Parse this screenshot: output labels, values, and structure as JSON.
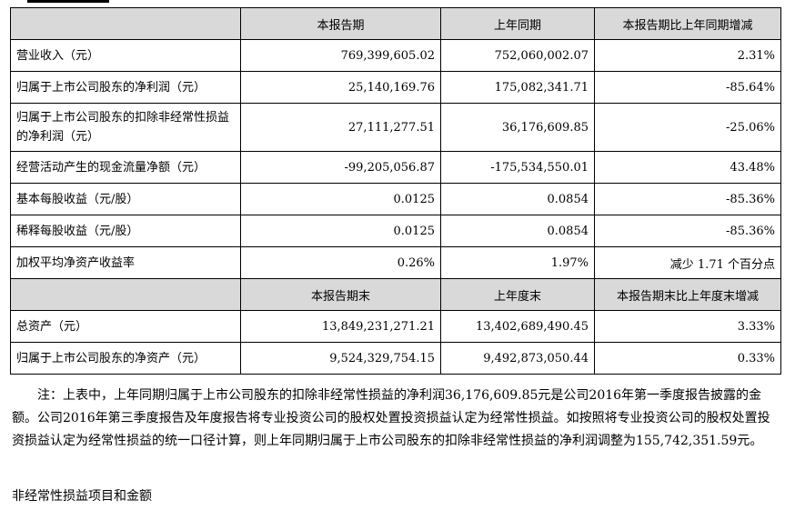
{
  "header": {
    "col1": "本报告期",
    "col2": "上年同期",
    "col3": "本报告期比上年同期增减"
  },
  "rows": [
    {
      "label": "营业收入（元）",
      "current": "769,399,605.02",
      "prior": "752,060,002.07",
      "change": "2.31%"
    },
    {
      "label": "归属于上市公司股东的净利润（元）",
      "current": "25,140,169.76",
      "prior": "175,082,341.71",
      "change": "-85.64%"
    },
    {
      "label": "归属于上市公司股东的扣除非经常性损益的净利润（元）",
      "current": "27,111,277.51",
      "prior": "36,176,609.85",
      "change": "-25.06%"
    },
    {
      "label": "经营活动产生的现金流量净额（元）",
      "current": "-99,205,056.87",
      "prior": "-175,534,550.01",
      "change": "43.48%"
    },
    {
      "label": "基本每股收益（元/股）",
      "current": "0.0125",
      "prior": "0.0854",
      "change": "-85.36%"
    },
    {
      "label": "稀释每股收益（元/股）",
      "current": "0.0125",
      "prior": "0.0854",
      "change": "-85.36%"
    },
    {
      "label": "加权平均净资产收益率",
      "current": "0.26%",
      "prior": "1.97%",
      "change": "减少 1.71 个百分点"
    }
  ],
  "header2": {
    "col1": "本报告期末",
    "col2": "上年度末",
    "col3": "本报告期末比上年度末增减"
  },
  "rows2": [
    {
      "label": "总资产（元）",
      "current": "13,849,231,271.21",
      "prior": "13,402,689,490.45",
      "change": "3.33%"
    },
    {
      "label": "归属于上市公司股东的净资产（元）",
      "current": "9,524,329,754.15",
      "prior": "9,492,873,050.44",
      "change": "0.33%"
    }
  ],
  "note": "注：上表中，上年同期归属于上市公司股东的扣除非经常性损益的净利润36,176,609.85元是公司2016年第一季度报告披露的金额。公司2016年第三季度报告及年度报告将专业投资公司的股权处置投资损益认定为经常性损益。如按照将专业投资公司的股权处置投资损益认定为经常性损益的统一口径计算，则上年同期归属于上市公司股东的扣除非经常性损益的净利润调整为155,742,351.59元。",
  "footer": "非经常性损益项目和金额"
}
